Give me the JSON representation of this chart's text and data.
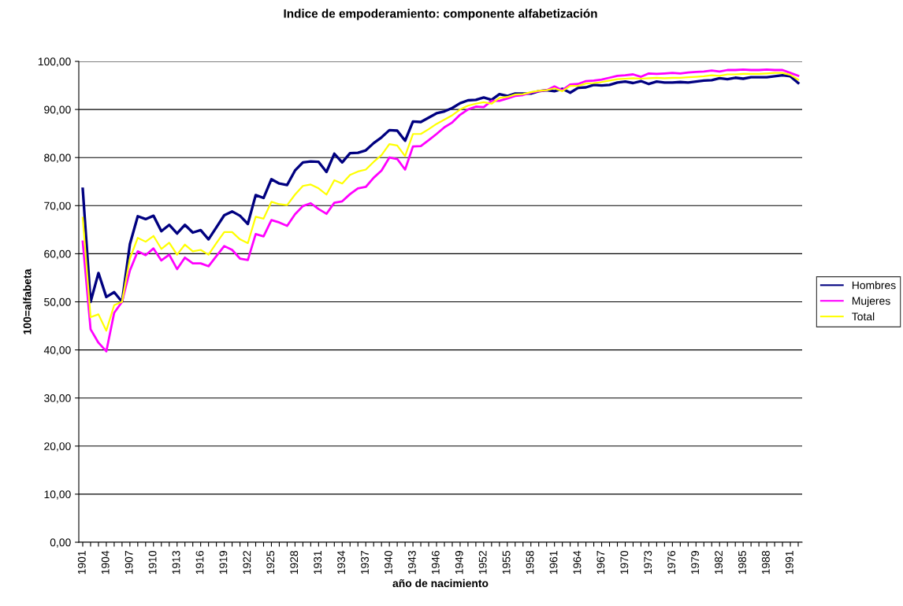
{
  "chart_data": {
    "type": "line",
    "title": "Indice de empoderamiento: componente alfabetización",
    "xlabel": "año de nacimiento",
    "ylabel": "100=alfabeta",
    "categories": [
      "1901",
      null,
      null,
      "1904",
      null,
      null,
      "1907",
      null,
      null,
      "1910",
      null,
      null,
      "1913",
      null,
      null,
      "1916",
      null,
      null,
      "1919",
      null,
      null,
      "1922",
      null,
      null,
      "1925",
      null,
      null,
      "1928",
      null,
      null,
      "1931",
      null,
      null,
      "1934",
      null,
      null,
      "1937",
      null,
      null,
      "1940",
      null,
      null,
      "1943",
      null,
      null,
      "1946",
      null,
      null,
      "1949",
      null,
      null,
      "1952",
      null,
      null,
      "1955",
      null,
      null,
      "1958",
      null,
      null,
      "1961",
      null,
      null,
      "1964",
      null,
      null,
      "1967",
      null,
      null,
      "1970",
      null,
      null,
      "1973",
      null,
      null,
      "1976",
      null,
      null,
      "1979",
      null,
      null,
      "1982",
      null,
      null,
      "1985",
      null,
      null,
      "1988",
      null,
      null,
      "1991",
      null
    ],
    "series": [
      {
        "name": "Hombres",
        "color": "#000080",
        "values": [
          73.5,
          50,
          56,
          51,
          52,
          50,
          62,
          67.8,
          67.2,
          67.9,
          64.7,
          66,
          64.2,
          66,
          64.4,
          64.9,
          63,
          65.5,
          68,
          68.8,
          67.9,
          66.2,
          72.2,
          71.6,
          75.5,
          74.6,
          74.3,
          77.3,
          79,
          79.2,
          79.1,
          77,
          80.8,
          79,
          80.9,
          81,
          81.5,
          83,
          84.2,
          85.7,
          85.6,
          83.5,
          87.5,
          87.4,
          88.3,
          89.2,
          89.6,
          90.3,
          91.3,
          91.9,
          92,
          92.5,
          92,
          93.2,
          92.8,
          93.3,
          93.3,
          93.3,
          93.8,
          94,
          93.8,
          94.3,
          93.5,
          94.5,
          94.6,
          95.1,
          95,
          95.1,
          95.6,
          95.8,
          95.5,
          95.9,
          95.3,
          95.8,
          95.6,
          95.6,
          95.7,
          95.6,
          95.8,
          96,
          96.1,
          96.5,
          96.3,
          96.6,
          96.4,
          96.7,
          96.7,
          96.7,
          96.9,
          97.1,
          96.9,
          95.5
        ]
      },
      {
        "name": "Mujeres",
        "color": "#ff00ff",
        "values": [
          62.5,
          44.3,
          41.5,
          39.7,
          47.7,
          50,
          56.5,
          60.5,
          59.7,
          61.1,
          58.6,
          59.8,
          56.8,
          59.2,
          58,
          58,
          57.4,
          59.5,
          61.6,
          60.8,
          59,
          58.7,
          64.1,
          63.6,
          67,
          66.5,
          65.8,
          68.2,
          69.9,
          70.5,
          69.3,
          68.3,
          70.6,
          70.9,
          72.4,
          73.6,
          73.9,
          75.8,
          77.3,
          80.0,
          79.7,
          77.5,
          82.3,
          82.4,
          83.6,
          84.9,
          86.3,
          87.3,
          88.9,
          90.0,
          90.6,
          90.5,
          91.8,
          91.8,
          92.3,
          92.8,
          93,
          93.5,
          93.8,
          94,
          94.8,
          94,
          95.2,
          95.3,
          95.9,
          96,
          96.2,
          96.6,
          97,
          97.1,
          97.3,
          96.8,
          97.5,
          97.4,
          97.5,
          97.6,
          97.5,
          97.7,
          97.8,
          97.9,
          98.1,
          97.9,
          98.2,
          98.2,
          98.3,
          98.2,
          98.2,
          98.3,
          98.2,
          98.2,
          97.6,
          97.0
        ]
      },
      {
        "name": "Total",
        "color": "#ffff00",
        "values": [
          67.5,
          46.8,
          47.4,
          44,
          49.3,
          50,
          59,
          63.3,
          62.5,
          63.7,
          61,
          62.3,
          59.8,
          61.9,
          60.5,
          60.8,
          59.8,
          62.2,
          64.5,
          64.5,
          63,
          62.2,
          67.7,
          67.3,
          70.8,
          70.3,
          70.1,
          72.3,
          74.1,
          74.4,
          73.6,
          72.3,
          75.3,
          74.6,
          76.4,
          77.1,
          77.5,
          79.1,
          80.5,
          82.8,
          82.5,
          80.3,
          84.9,
          84.9,
          85.9,
          87.0,
          87.9,
          88.8,
          90.0,
          90.8,
          91.2,
          91.5,
          91.2,
          92.4,
          92.6,
          93.1,
          93.2,
          93.6,
          93.9,
          94.0,
          94.4,
          93.8,
          94.9,
          94.9,
          95.4,
          95.5,
          95.7,
          96.0,
          96.3,
          96.4,
          96.5,
          96.4,
          96.5,
          96.6,
          96.5,
          96.6,
          96.6,
          96.7,
          96.8,
          96.9,
          97.1,
          97.0,
          97.3,
          97.3,
          97.4,
          97.4,
          97.4,
          97.5,
          97.6,
          97.6,
          97.2,
          96.2
        ]
      }
    ],
    "ylim": [
      0,
      100
    ],
    "yticks": [
      {
        "value": 0,
        "label": "0,00"
      },
      {
        "value": 10,
        "label": "10,00"
      },
      {
        "value": 20,
        "label": "20,00"
      },
      {
        "value": 30,
        "label": "30,00"
      },
      {
        "value": 40,
        "label": "40,00"
      },
      {
        "value": 50,
        "label": "50,00"
      },
      {
        "value": 60,
        "label": "60,00"
      },
      {
        "value": 70,
        "label": "70,00"
      },
      {
        "value": 80,
        "label": "80,00"
      },
      {
        "value": 90,
        "label": "90,00"
      },
      {
        "value": 100,
        "label": "100,00"
      }
    ],
    "grid": "y",
    "legend": "right",
    "marker": "none",
    "line_style": "solid"
  }
}
